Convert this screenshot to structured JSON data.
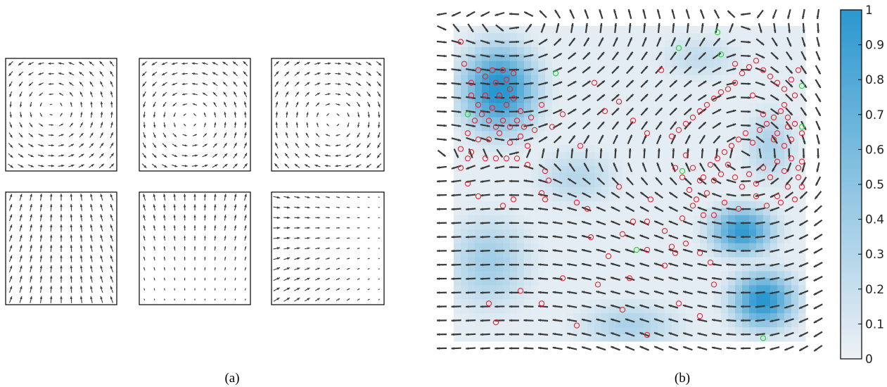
{
  "figure": {
    "panel_labels": [
      "(a)",
      "(b)"
    ]
  },
  "colors": {
    "arrow": "#3a3a3a",
    "colormap_low": "#eef1f5",
    "colormap_high": "#2b97cf",
    "obs_circle": "#e8222d",
    "green_circle": "#21d32a",
    "frame": "#000000"
  },
  "chart_data": [
    {
      "type": "vector_field",
      "panel": "(a)",
      "description_of_panels": "six basis vector fields, 2 rows x 3 columns",
      "grid": [
        11,
        11
      ],
      "fields": [
        {
          "pattern": "vortex",
          "center": [
            0.42,
            0.55
          ],
          "strength": 1.0,
          "spin": -1
        },
        {
          "pattern": "vortex",
          "center": [
            0.45,
            0.45
          ],
          "strength": 1.0,
          "spin": -1
        },
        {
          "pattern": "vortex",
          "center": [
            0.55,
            0.45
          ],
          "strength": 1.0,
          "spin": 1
        },
        {
          "pattern": "sink_top",
          "center": [
            0.5,
            1.2
          ],
          "strength": 1.0,
          "spin": 0
        },
        {
          "pattern": "upward_decay",
          "center": [
            0.5,
            0.2
          ],
          "strength": 1.0,
          "spin": 0
        },
        {
          "pattern": "source_left",
          "center": [
            -0.2,
            0.55
          ],
          "strength": 1.0,
          "spin": 0
        }
      ]
    },
    {
      "type": "heatmap_vector_field",
      "panel": "(b)",
      "colorbar": {
        "ticks": [
          "0",
          "0.1",
          "0.2",
          "0.3",
          "0.4",
          "0.5",
          "0.6",
          "0.7",
          "0.8",
          "0.9",
          "1"
        ],
        "range": [
          0,
          1
        ]
      },
      "density_blobs": [
        {
          "x": 0.13,
          "y": 0.8,
          "sx": 0.07,
          "sy": 0.09,
          "value": 0.95
        },
        {
          "x": 0.82,
          "y": 0.35,
          "sx": 0.06,
          "sy": 0.05,
          "value": 0.85
        },
        {
          "x": 0.88,
          "y": 0.13,
          "sx": 0.06,
          "sy": 0.06,
          "value": 0.9
        },
        {
          "x": 0.1,
          "y": 0.25,
          "sx": 0.08,
          "sy": 0.1,
          "value": 0.35
        },
        {
          "x": 0.9,
          "y": 0.62,
          "sx": 0.05,
          "sy": 0.08,
          "value": 0.3
        },
        {
          "x": 0.5,
          "y": 0.05,
          "sx": 0.1,
          "sy": 0.05,
          "value": 0.3
        },
        {
          "x": 0.35,
          "y": 0.52,
          "sx": 0.08,
          "sy": 0.06,
          "value": 0.25
        },
        {
          "x": 0.7,
          "y": 0.9,
          "sx": 0.08,
          "sy": 0.05,
          "value": 0.2
        }
      ],
      "red_points": [
        [
          0.02,
          0.95
        ],
        [
          0.03,
          0.88
        ],
        [
          0.05,
          0.82
        ],
        [
          0.07,
          0.86
        ],
        [
          0.09,
          0.84
        ],
        [
          0.11,
          0.86
        ],
        [
          0.12,
          0.82
        ],
        [
          0.14,
          0.86
        ],
        [
          0.15,
          0.83
        ],
        [
          0.16,
          0.8
        ],
        [
          0.17,
          0.85
        ],
        [
          0.05,
          0.78
        ],
        [
          0.07,
          0.75
        ],
        [
          0.09,
          0.78
        ],
        [
          0.11,
          0.74
        ],
        [
          0.13,
          0.78
        ],
        [
          0.15,
          0.75
        ],
        [
          0.17,
          0.77
        ],
        [
          0.19,
          0.73
        ],
        [
          0.06,
          0.7
        ],
        [
          0.08,
          0.72
        ],
        [
          0.1,
          0.7
        ],
        [
          0.12,
          0.68
        ],
        [
          0.14,
          0.7
        ],
        [
          0.16,
          0.68
        ],
        [
          0.18,
          0.7
        ],
        [
          0.2,
          0.68
        ],
        [
          0.22,
          0.71
        ],
        [
          0.04,
          0.66
        ],
        [
          0.07,
          0.64
        ],
        [
          0.1,
          0.64
        ],
        [
          0.13,
          0.66
        ],
        [
          0.16,
          0.63
        ],
        [
          0.19,
          0.65
        ],
        [
          0.21,
          0.62
        ],
        [
          0.23,
          0.67
        ],
        [
          0.02,
          0.61
        ],
        [
          0.04,
          0.58
        ],
        [
          0.09,
          0.58
        ],
        [
          0.12,
          0.58
        ],
        [
          0.15,
          0.58
        ],
        [
          0.18,
          0.58
        ],
        [
          0.21,
          0.56
        ],
        [
          0.25,
          0.75
        ],
        [
          0.28,
          0.68
        ],
        [
          0.31,
          0.72
        ],
        [
          0.36,
          0.62
        ],
        [
          0.4,
          0.82
        ],
        [
          0.43,
          0.73
        ],
        [
          0.47,
          0.76
        ],
        [
          0.51,
          0.7
        ],
        [
          0.55,
          0.66
        ],
        [
          0.59,
          0.86
        ],
        [
          0.26,
          0.54
        ],
        [
          0.27,
          0.51
        ],
        [
          0.25,
          0.47
        ],
        [
          0.26,
          0.45
        ],
        [
          0.35,
          0.44
        ],
        [
          0.38,
          0.42
        ],
        [
          0.47,
          0.49
        ],
        [
          0.51,
          0.38
        ],
        [
          0.56,
          0.45
        ],
        [
          0.55,
          0.38
        ],
        [
          0.6,
          0.35
        ],
        [
          0.65,
          0.39
        ],
        [
          0.68,
          0.43
        ],
        [
          0.71,
          0.4
        ],
        [
          0.74,
          0.4
        ],
        [
          0.77,
          0.44
        ],
        [
          0.81,
          0.42
        ],
        [
          0.86,
          0.46
        ],
        [
          0.89,
          0.43
        ],
        [
          0.92,
          0.46
        ],
        [
          0.95,
          0.49
        ],
        [
          0.98,
          0.52
        ],
        [
          0.39,
          0.33
        ],
        [
          0.44,
          0.27
        ],
        [
          0.48,
          0.34
        ],
        [
          0.55,
          0.29
        ],
        [
          0.6,
          0.24
        ],
        [
          0.63,
          0.28
        ],
        [
          0.66,
          0.31
        ],
        [
          0.7,
          0.28
        ],
        [
          0.73,
          0.25
        ],
        [
          0.14,
          0.43
        ],
        [
          0.17,
          0.45
        ],
        [
          0.07,
          0.46
        ],
        [
          0.05,
          0.6
        ],
        [
          0.04,
          0.5
        ],
        [
          0.02,
          0.55
        ],
        [
          0.8,
          0.88
        ],
        [
          0.85,
          0.78
        ],
        [
          0.88,
          0.72
        ],
        [
          0.91,
          0.64
        ],
        [
          0.95,
          0.68
        ],
        [
          0.94,
          0.75
        ],
        [
          0.97,
          0.78
        ],
        [
          0.99,
          0.57
        ],
        [
          0.66,
          0.59
        ],
        [
          0.68,
          0.55
        ],
        [
          0.7,
          0.51
        ],
        [
          0.72,
          0.47
        ],
        [
          0.74,
          0.51
        ],
        [
          0.76,
          0.53
        ],
        [
          0.78,
          0.56
        ],
        [
          0.8,
          0.52
        ],
        [
          0.82,
          0.49
        ],
        [
          0.84,
          0.53
        ],
        [
          0.86,
          0.5
        ],
        [
          0.88,
          0.55
        ],
        [
          0.9,
          0.52
        ],
        [
          0.92,
          0.57
        ],
        [
          0.94,
          0.54
        ],
        [
          0.96,
          0.58
        ],
        [
          0.98,
          0.55
        ],
        [
          0.99,
          0.49
        ],
        [
          0.97,
          0.45
        ],
        [
          0.93,
          0.44
        ],
        [
          0.63,
          0.55
        ],
        [
          0.65,
          0.52
        ],
        [
          0.67,
          0.48
        ],
        [
          0.69,
          0.45
        ],
        [
          0.71,
          0.52
        ],
        [
          0.73,
          0.56
        ],
        [
          0.75,
          0.58
        ],
        [
          0.77,
          0.6
        ],
        [
          0.79,
          0.62
        ],
        [
          0.81,
          0.64
        ],
        [
          0.83,
          0.66
        ],
        [
          0.85,
          0.63
        ],
        [
          0.87,
          0.67
        ],
        [
          0.89,
          0.69
        ],
        [
          0.91,
          0.71
        ],
        [
          0.93,
          0.73
        ],
        [
          0.95,
          0.71
        ],
        [
          0.97,
          0.69
        ],
        [
          0.99,
          0.66
        ],
        [
          0.96,
          0.64
        ],
        [
          0.94,
          0.62
        ],
        [
          0.92,
          0.66
        ],
        [
          0.62,
          0.65
        ],
        [
          0.64,
          0.67
        ],
        [
          0.66,
          0.69
        ],
        [
          0.68,
          0.71
        ],
        [
          0.7,
          0.73
        ],
        [
          0.72,
          0.75
        ],
        [
          0.74,
          0.77
        ],
        [
          0.76,
          0.79
        ],
        [
          0.78,
          0.8
        ],
        [
          0.8,
          0.82
        ],
        [
          0.82,
          0.85
        ],
        [
          0.84,
          0.87
        ],
        [
          0.86,
          0.89
        ],
        [
          0.88,
          0.86
        ],
        [
          0.9,
          0.84
        ],
        [
          0.92,
          0.82
        ],
        [
          0.94,
          0.8
        ],
        [
          0.96,
          0.83
        ],
        [
          0.98,
          0.86
        ],
        [
          0.12,
          0.06
        ],
        [
          0.35,
          0.05
        ],
        [
          0.55,
          0.02
        ],
        [
          0.25,
          0.12
        ],
        [
          0.48,
          0.1
        ],
        [
          0.64,
          0.12
        ],
        [
          0.7,
          0.08
        ],
        [
          0.31,
          0.2
        ],
        [
          0.41,
          0.18
        ],
        [
          0.19,
          0.16
        ],
        [
          0.1,
          0.12
        ],
        [
          0.5,
          0.2
        ],
        [
          0.62,
          0.3
        ],
        [
          0.74,
          0.18
        ]
      ],
      "green_points": [
        [
          0.29,
          0.85
        ],
        [
          0.04,
          0.72
        ],
        [
          0.64,
          0.93
        ],
        [
          0.76,
          0.91
        ],
        [
          0.75,
          0.98
        ],
        [
          0.99,
          0.81
        ],
        [
          0.99,
          0.68
        ],
        [
          0.65,
          0.54
        ],
        [
          0.52,
          0.29
        ],
        [
          0.88,
          0.01
        ]
      ],
      "vector_grid": [
        27,
        25
      ]
    }
  ]
}
